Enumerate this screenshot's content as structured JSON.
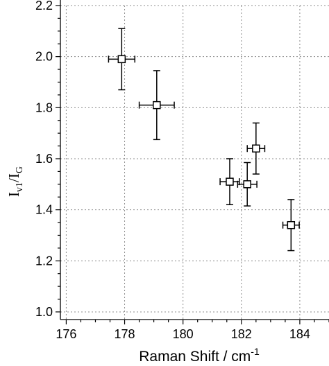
{
  "chart_data": {
    "type": "scatter",
    "title": "",
    "xlabel": "Raman Shift / cm",
    "xlabel_superscript": "-1",
    "ylabel_main": "I",
    "ylabel_sub1": "v1",
    "ylabel_sep": "/I",
    "ylabel_sub2": "G",
    "xlim": [
      175.8,
      185
    ],
    "ylim": [
      0.97,
      2.2
    ],
    "xticks": [
      176,
      178,
      180,
      182,
      184
    ],
    "xtick_labels": [
      "176",
      "178",
      "180",
      "182",
      "184"
    ],
    "yticks": [
      1.0,
      1.2,
      1.4,
      1.6,
      1.8,
      2.0,
      2.2
    ],
    "ytick_labels": [
      "1.0",
      "1.2",
      "1.4",
      "1.6",
      "1.8",
      "2.0",
      "2.2"
    ],
    "grid": true,
    "marker": "open-square",
    "points": [
      {
        "x": 177.9,
        "y": 1.99,
        "xerr": 0.45,
        "yerr": 0.12
      },
      {
        "x": 179.1,
        "y": 1.81,
        "xerr": 0.6,
        "yerr": 0.135
      },
      {
        "x": 181.6,
        "y": 1.51,
        "xerr": 0.33,
        "yerr": 0.09
      },
      {
        "x": 182.2,
        "y": 1.5,
        "xerr": 0.33,
        "yerr": 0.085
      },
      {
        "x": 182.5,
        "y": 1.64,
        "xerr": 0.3,
        "yerr": 0.1
      },
      {
        "x": 183.7,
        "y": 1.34,
        "xerr": 0.28,
        "yerr": 0.1
      }
    ]
  }
}
